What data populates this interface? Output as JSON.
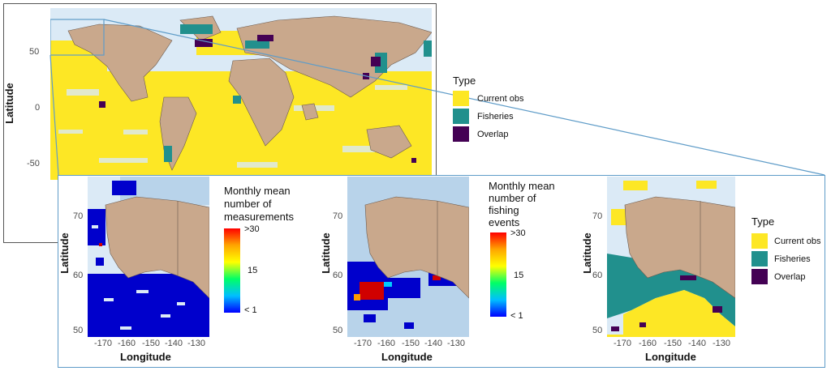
{
  "colors": {
    "ocean": "#dbeaf6",
    "land": "#c9a88c",
    "land_border": "#6b5a4e",
    "current_obs": "#fde725",
    "fisheries": "#21908d",
    "overlap": "#440154",
    "frame": "#5f9cc8",
    "dark_frame": "#555555"
  },
  "world_map": {
    "y_axis_title": "Latitude",
    "y_ticks": [
      "50",
      "0",
      "-50"
    ],
    "legend": {
      "title": "Type",
      "items": [
        {
          "label": "Current obs",
          "color": "#fde725"
        },
        {
          "label": "Fisheries",
          "color": "#21908d"
        },
        {
          "label": "Overlap",
          "color": "#440154"
        }
      ]
    }
  },
  "panel_measurements": {
    "x_axis_title": "Longitude",
    "y_axis_title": "Latitude",
    "x_ticks": [
      "-170",
      "-160",
      "-150",
      "-140",
      "-130"
    ],
    "y_ticks": [
      "70",
      "60",
      "50"
    ],
    "legend": {
      "title_lines": [
        "Monthly mean",
        "number of",
        "measurements"
      ],
      "max_label": ">30",
      "mid_label": "15",
      "min_label": "< 1"
    }
  },
  "panel_fishing": {
    "x_axis_title": "Longitude",
    "y_axis_title": "Latitude",
    "x_ticks": [
      "-170",
      "-160",
      "-150",
      "-140",
      "-130"
    ],
    "y_ticks": [
      "70",
      "60",
      "50"
    ],
    "legend": {
      "title_lines": [
        "Monthly mean",
        "number of",
        "fishing",
        "events"
      ],
      "max_label": ">30",
      "mid_label": "15",
      "min_label": "< 1"
    }
  },
  "panel_type": {
    "x_axis_title": "Longitude",
    "y_axis_title": "Latitude",
    "x_ticks": [
      "-170",
      "-160",
      "-150",
      "-140",
      "-130"
    ],
    "y_ticks": [
      "70",
      "60",
      "50"
    ],
    "legend": {
      "title": "Type",
      "items": [
        {
          "label": "Current obs",
          "color": "#fde725"
        },
        {
          "label": "Fisheries",
          "color": "#21908d"
        },
        {
          "label": "Overlap",
          "color": "#440154"
        }
      ]
    }
  }
}
